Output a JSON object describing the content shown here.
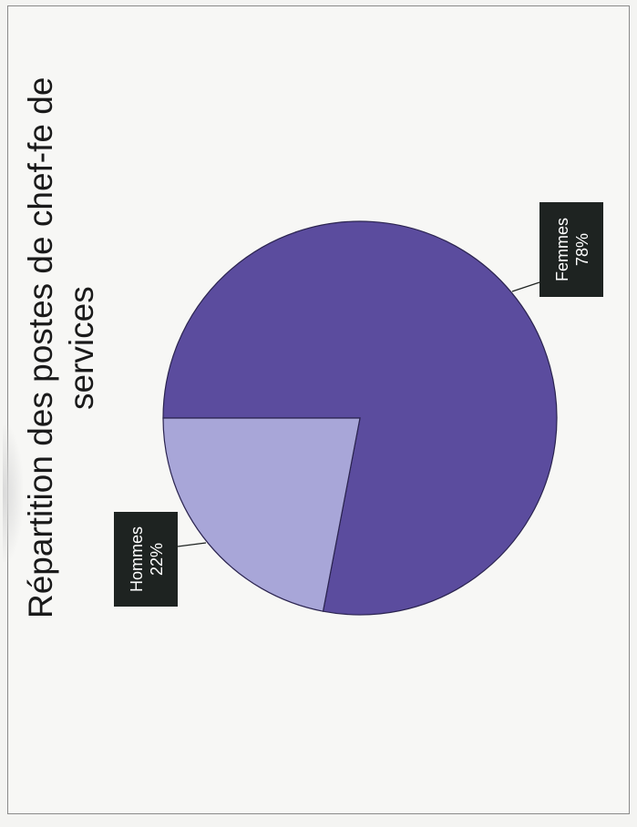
{
  "chart_data": {
    "type": "pie",
    "title": "Répartition des postes de chef-fe de services",
    "categories": [
      "Femmes",
      "Hommes"
    ],
    "values": [
      78,
      22
    ],
    "data_labels": [
      "78%",
      "22%"
    ],
    "colors": [
      "#5b4c9e",
      "#a8a6d8"
    ],
    "label_box_color": "#1e2321",
    "orientation": "rotated 90° counter-clockwise (page scanned sideways)"
  }
}
